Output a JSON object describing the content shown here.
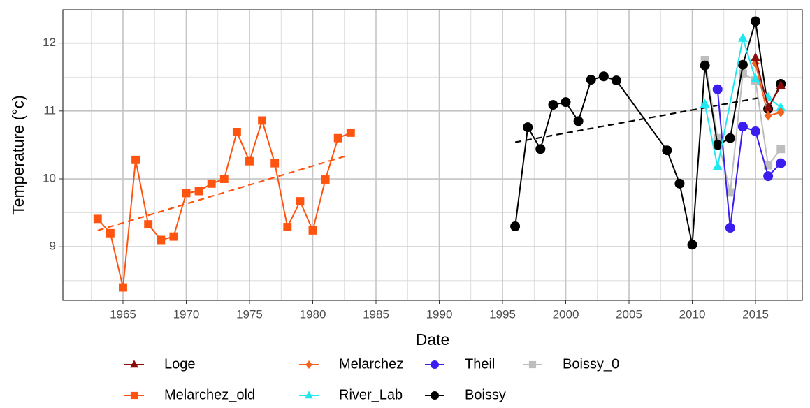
{
  "chart_data": {
    "type": "line",
    "x_label": "Date",
    "y_label": "Temperature (°c)",
    "xlim": [
      1960.25,
      2018.7
    ],
    "ylim": [
      8.21,
      12.49
    ],
    "xticks": [
      1965,
      1970,
      1975,
      1980,
      1985,
      1990,
      1995,
      2000,
      2005,
      2010,
      2015
    ],
    "yticks": [
      9,
      10,
      11,
      12
    ],
    "grid": true,
    "minor_grid": true,
    "legend": "bottom",
    "series": [
      {
        "name": "Loge",
        "color": "#8b0a0a",
        "marker": "triangle",
        "x": [
          2015,
          2016,
          2017
        ],
        "values": [
          11.78,
          11.05,
          11.37
        ]
      },
      {
        "name": "Melarchez_old",
        "color": "#ff5410",
        "marker": "square",
        "x": [
          1963,
          1964,
          1965,
          1966,
          1967,
          1968,
          1969,
          1970,
          1971,
          1972,
          1973,
          1974,
          1975,
          1976,
          1977,
          1978,
          1979,
          1980,
          1981,
          1982,
          1983
        ],
        "values": [
          9.41,
          9.2,
          8.4,
          10.28,
          9.33,
          9.1,
          9.15,
          9.79,
          9.82,
          9.93,
          10.0,
          10.69,
          10.26,
          10.86,
          10.23,
          9.29,
          9.67,
          9.24,
          9.99,
          10.6,
          10.68
        ]
      },
      {
        "name": "Melarchez",
        "color": "#f2641e",
        "marker": "diamond",
        "x": [
          2015,
          2016,
          2017
        ],
        "values": [
          11.7,
          10.93,
          10.98
        ]
      },
      {
        "name": "River_Lab",
        "color": "#1ee8f2",
        "marker": "triangle",
        "x": [
          2011,
          2012,
          2014,
          2015,
          2016,
          2017
        ],
        "values": [
          11.1,
          10.18,
          12.07,
          11.47,
          11.2,
          11.05
        ]
      },
      {
        "name": "Theil",
        "color": "#3a1ef0",
        "marker": "circle",
        "x": [
          2012,
          2013,
          2014,
          2015,
          2016,
          2017
        ],
        "values": [
          11.32,
          9.28,
          10.77,
          10.7,
          10.04,
          10.23
        ]
      },
      {
        "name": "Boissy",
        "color": "#000000",
        "marker": "circle",
        "x": [
          1996,
          1997,
          1998,
          1999,
          2000,
          2001,
          2002,
          2003,
          2004,
          2008,
          2009,
          2010,
          2011,
          2012,
          2013,
          2014,
          2015,
          2016,
          2017
        ],
        "values": [
          9.3,
          10.76,
          10.44,
          11.09,
          11.13,
          10.85,
          11.46,
          11.51,
          11.45,
          10.42,
          9.93,
          9.03,
          11.67,
          10.5,
          10.6,
          11.68,
          12.32,
          11.03,
          11.4
        ]
      },
      {
        "name": "Boissy_0",
        "color": "#bdbdbd",
        "marker": "square",
        "x": [
          2011,
          2012,
          2013,
          2014,
          2015,
          2016,
          2017
        ],
        "values": [
          11.75,
          10.6,
          9.8,
          11.55,
          11.45,
          10.2,
          10.44
        ]
      }
    ],
    "trends": [
      {
        "color": "#ff5410",
        "x": [
          1963,
          1982.5
        ],
        "values": [
          9.24,
          10.33
        ]
      },
      {
        "color": "#000000",
        "x": [
          1996,
          2015.5
        ],
        "values": [
          10.54,
          11.2
        ]
      }
    ]
  }
}
